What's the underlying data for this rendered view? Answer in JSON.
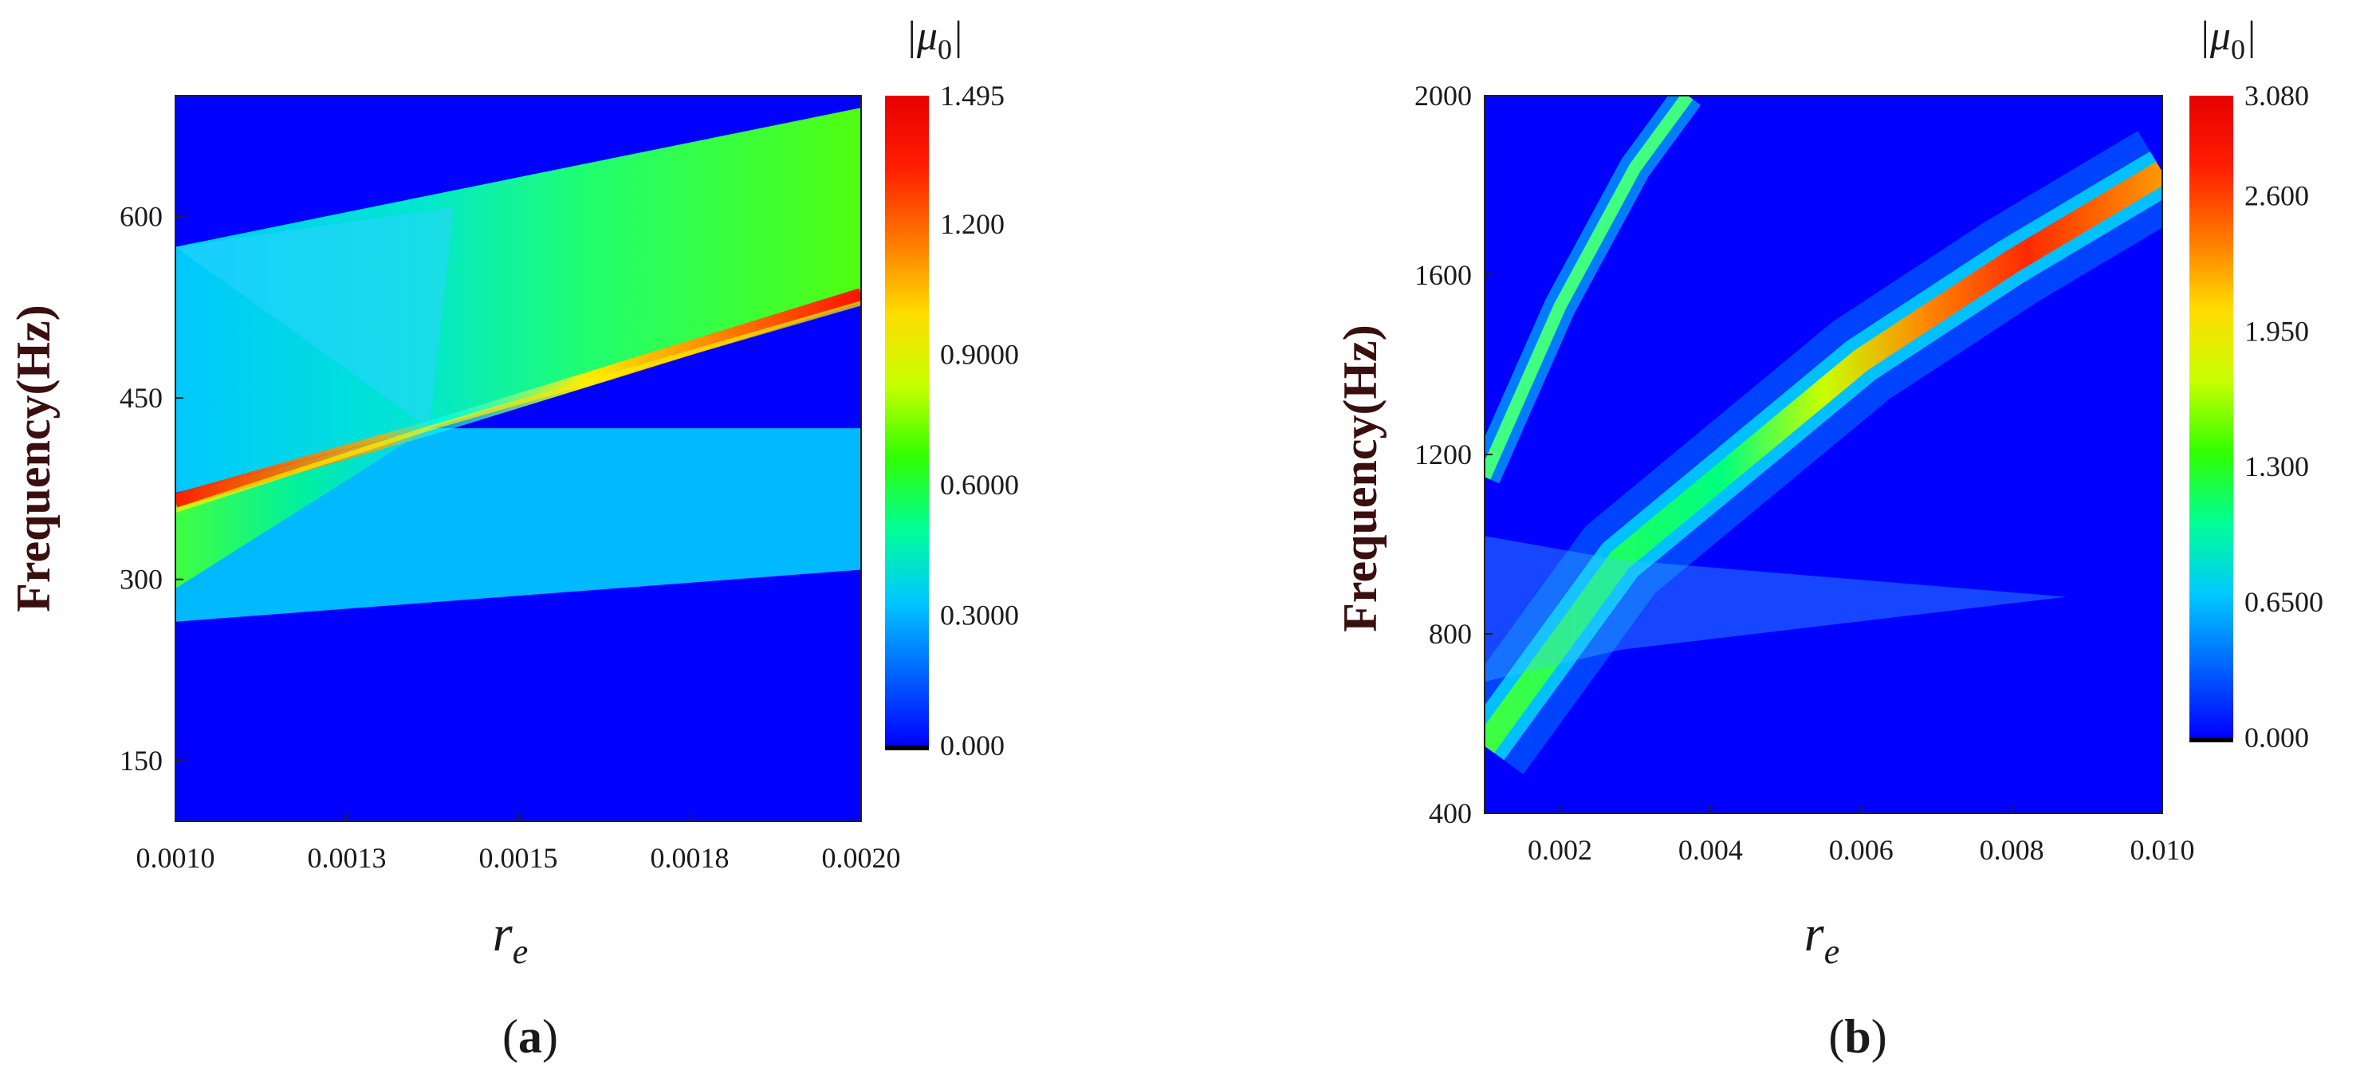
{
  "chart_data": [
    {
      "type": "heatmap",
      "panel_label": "(a)",
      "xlabel": "r_e",
      "ylabel": "Frequency(Hz)",
      "xlim": [
        0.001,
        0.002
      ],
      "ylim": [
        100,
        700
      ],
      "xticks": [
        "0.0010",
        "0.0013",
        "0.0015",
        "0.0018",
        "0.0020"
      ],
      "xtick_values": [
        0.001,
        0.00125,
        0.0015,
        0.00175,
        0.002
      ],
      "yticks": [
        "150",
        "300",
        "450",
        "600"
      ],
      "ytick_values": [
        150,
        300,
        450,
        600
      ],
      "colorbar": {
        "title": "|μ0|",
        "ticks": [
          "0.000",
          "0.3000",
          "0.6000",
          "0.9000",
          "1.200",
          "1.495"
        ],
        "tick_values": [
          0,
          0.3,
          0.6,
          0.9,
          1.2,
          1.495
        ],
        "range": [
          0,
          1.495
        ]
      },
      "features": {
        "crossing_point": {
          "x": 0.00137,
          "y": 425
        },
        "resonance_ridge": {
          "x": [
            0.001,
            0.002
          ],
          "y": [
            365,
            535
          ]
        },
        "upper_band_edge": {
          "x": [
            0.001,
            0.002
          ],
          "y": [
            575,
            690
          ]
        },
        "lower_band_edge": {
          "x": [
            0.001,
            0.002
          ],
          "y": [
            265,
            308
          ]
        },
        "horizontal_band": {
          "y": [
            310,
            425
          ]
        }
      }
    },
    {
      "type": "heatmap",
      "panel_label": "(b)",
      "xlabel": "r_e",
      "ylabel": "Frequency(Hz)",
      "xlim": [
        0.001,
        0.01
      ],
      "ylim": [
        400,
        2000
      ],
      "xticks": [
        "0.002",
        "0.004",
        "0.006",
        "0.008",
        "0.010"
      ],
      "xtick_values": [
        0.002,
        0.004,
        0.006,
        0.008,
        0.01
      ],
      "yticks": [
        "400",
        "800",
        "1200",
        "1600",
        "2000"
      ],
      "ytick_values": [
        400,
        800,
        1200,
        1600,
        2000
      ],
      "colorbar": {
        "title": "|μ0|",
        "ticks": [
          "0.000",
          "0.6500",
          "1.300",
          "1.950",
          "2.600",
          "3.080"
        ],
        "tick_values": [
          0,
          0.65,
          1.3,
          1.95,
          2.6,
          3.08
        ],
        "range": [
          0,
          3.08
        ]
      },
      "features": {
        "crossing_point": {
          "x": 0.0028,
          "y": 965
        },
        "main_ridge": {
          "x": [
            0.001,
            0.0028,
            0.006,
            0.008,
            0.01
          ],
          "y": [
            550,
            965,
            1410,
            1630,
            1830
          ]
        },
        "upper_branch": {
          "x": [
            0.001,
            0.002,
            0.003,
            0.0037
          ],
          "y": [
            1150,
            1530,
            1840,
            2000
          ]
        },
        "horizontal_band": {
          "y": [
            800,
            965
          ]
        }
      }
    }
  ]
}
